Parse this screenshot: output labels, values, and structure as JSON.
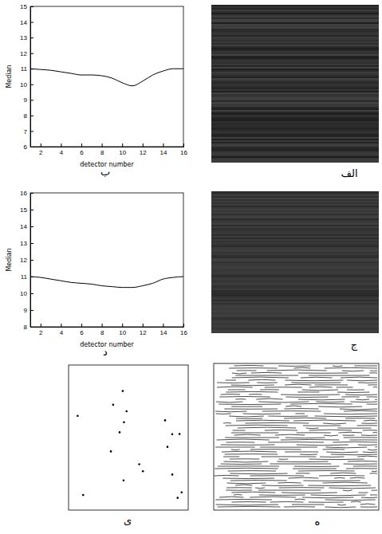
{
  "chart_data": [
    {
      "type": "image",
      "label": "الف"
    },
    {
      "type": "line",
      "label": "ب",
      "xlabel": "detector number",
      "ylabel": "Median",
      "x": [
        1,
        2,
        3,
        4,
        5,
        6,
        7,
        8,
        9,
        10,
        11,
        12,
        13,
        14,
        15,
        16
      ],
      "values": [
        11,
        10.95,
        10.9,
        10.8,
        10.7,
        10.6,
        10.6,
        10.55,
        10.4,
        10.1,
        9.9,
        10.2,
        10.6,
        10.85,
        11,
        11
      ],
      "color": "#000000",
      "xlim": [
        1,
        16
      ],
      "ylim": [
        6,
        15
      ],
      "xticks": [
        2,
        4,
        6,
        8,
        10,
        12,
        14,
        16
      ],
      "yticks": [
        6,
        7,
        8,
        9,
        10,
        11,
        12,
        13,
        14,
        15
      ],
      "grid": false
    },
    {
      "type": "image",
      "label": "ج"
    },
    {
      "type": "line",
      "label": "د",
      "xlabel": "detector number",
      "ylabel": "Median",
      "x": [
        1,
        2,
        3,
        4,
        5,
        6,
        7,
        8,
        9,
        10,
        11,
        12,
        13,
        14,
        15,
        16
      ],
      "values": [
        11,
        10.95,
        10.85,
        10.75,
        10.65,
        10.6,
        10.55,
        10.45,
        10.4,
        10.35,
        10.35,
        10.45,
        10.6,
        10.85,
        10.95,
        11
      ],
      "color": "#000000",
      "xlim": [
        1,
        16
      ],
      "ylim": [
        8,
        16
      ],
      "xticks": [
        2,
        4,
        6,
        8,
        10,
        12,
        14,
        16
      ],
      "yticks": [
        8,
        9,
        10,
        11,
        12,
        13,
        14,
        15,
        16
      ],
      "grid": false
    },
    {
      "type": "image",
      "label": "ه"
    },
    {
      "type": "image",
      "label": "ی"
    }
  ]
}
